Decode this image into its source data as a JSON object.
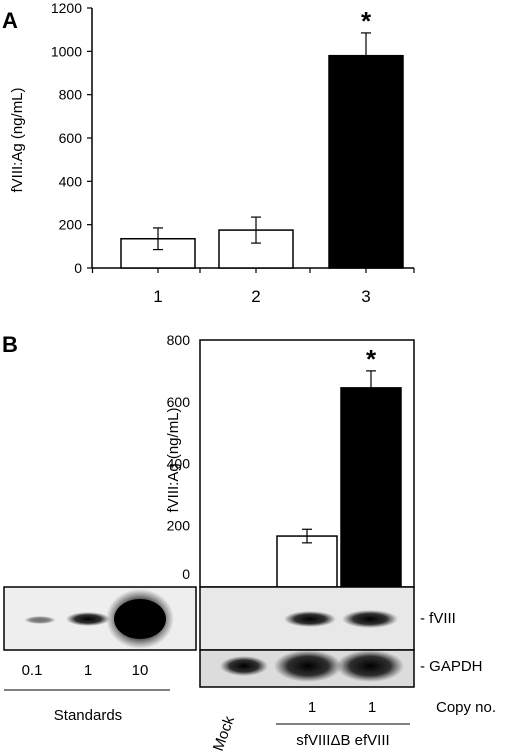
{
  "chart_data": [
    {
      "panel": "A",
      "type": "bar",
      "ylabel": "fVIII:Ag (ng/mL)",
      "ylim": [
        0,
        1200
      ],
      "yticks": [
        0,
        200,
        400,
        600,
        800,
        1000,
        1200
      ],
      "categories": [
        "1",
        "2",
        "3"
      ],
      "values": [
        135,
        175,
        980
      ],
      "errors": [
        50,
        60,
        105
      ],
      "fills": [
        "#ffffff",
        "#ffffff",
        "#000000"
      ],
      "annotations": [
        "",
        "",
        "*"
      ]
    },
    {
      "panel": "B",
      "type": "bar",
      "ylabel": "fVIII:Ag (ng/mL)",
      "ylim": [
        0,
        800
      ],
      "yticks": [
        0,
        200,
        400,
        600,
        800
      ],
      "categories": [
        "sfVIIIΔB",
        "efVIII"
      ],
      "values": [
        165,
        645
      ],
      "errors": [
        22,
        55
      ],
      "fills": [
        "#ffffff",
        "#000000"
      ],
      "annotations": [
        "",
        "*"
      ]
    }
  ],
  "blot": {
    "band_labels": [
      "- fVIII",
      "- GAPDH"
    ],
    "standards_values": [
      "0.1",
      "1",
      "10"
    ],
    "standards_label": "Standards",
    "mock_label": "Mock",
    "copy_numbers": [
      "1",
      "1"
    ],
    "copy_label": "Copy no.",
    "construct_label": "sfVIIIΔB efVIII"
  },
  "colors": {
    "ink": "#000000",
    "paper": "#ffffff",
    "blot_bg": "#e9e9e9"
  }
}
